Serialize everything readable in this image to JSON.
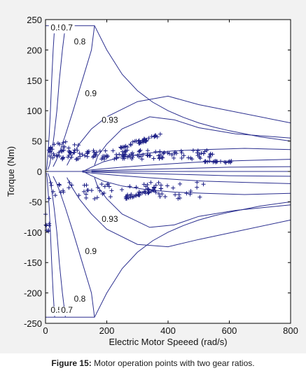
{
  "caption": {
    "label": "Figure 15:",
    "text": "Motor operation points with two gear ratios."
  },
  "colors": {
    "contour": "#2b2f8f",
    "points": "#1c1f86",
    "axis": "#000000",
    "panel": "#f2f2f2"
  },
  "chart_data": {
    "type": "scatter",
    "xlabel": "Electric Motor Speeed (rad/s)",
    "ylabel": "Torque (Nm)",
    "xlim": [
      0,
      800
    ],
    "ylim": [
      -250,
      250
    ],
    "xticks": [
      0,
      200,
      400,
      600,
      800
    ],
    "yticks": [
      250,
      200,
      150,
      100,
      50,
      0,
      -50,
      -100,
      -150,
      -200,
      -250
    ],
    "grid": false,
    "max_torque_limit": [
      [
        0,
        240
      ],
      [
        80,
        240
      ],
      [
        160,
        240
      ],
      [
        200,
        200
      ],
      [
        250,
        160
      ],
      [
        300,
        133
      ],
      [
        350,
        114
      ],
      [
        400,
        100
      ],
      [
        450,
        89
      ],
      [
        500,
        80
      ],
      [
        550,
        73
      ],
      [
        600,
        67
      ],
      [
        700,
        57
      ],
      [
        800,
        50
      ]
    ],
    "efficiency_contours": [
      {
        "level": "0.5",
        "label_points": [
          [
            36,
            232
          ],
          [
            36,
            -233
          ]
        ],
        "upper": [
          [
            30,
            240
          ],
          [
            25,
            200
          ],
          [
            20,
            150
          ],
          [
            16,
            100
          ],
          [
            12,
            60
          ],
          [
            8,
            30
          ],
          [
            5,
            10
          ],
          [
            3,
            2
          ]
        ],
        "lower": [
          [
            3,
            -2
          ],
          [
            5,
            -10
          ],
          [
            8,
            -30
          ],
          [
            12,
            -60
          ],
          [
            16,
            -100
          ],
          [
            20,
            -150
          ],
          [
            25,
            -200
          ],
          [
            30,
            -240
          ]
        ]
      },
      {
        "level": "0.7",
        "label_points": [
          [
            70,
            232
          ],
          [
            70,
            -233
          ]
        ],
        "upper": [
          [
            65,
            240
          ],
          [
            55,
            200
          ],
          [
            45,
            150
          ],
          [
            37,
            100
          ],
          [
            28,
            60
          ],
          [
            20,
            30
          ],
          [
            14,
            12
          ],
          [
            8,
            3
          ]
        ],
        "lower": [
          [
            8,
            -3
          ],
          [
            14,
            -12
          ],
          [
            20,
            -30
          ],
          [
            28,
            -60
          ],
          [
            37,
            -100
          ],
          [
            45,
            -150
          ],
          [
            55,
            -200
          ],
          [
            65,
            -240
          ]
        ]
      },
      {
        "level": "0.8",
        "label_points": [
          [
            112,
            209
          ],
          [
            112,
            -214
          ]
        ],
        "upper": [
          [
            160,
            240
          ],
          [
            150,
            200
          ],
          [
            120,
            150
          ],
          [
            90,
            100
          ],
          [
            65,
            60
          ],
          [
            48,
            35
          ],
          [
            35,
            18
          ],
          [
            25,
            8
          ]
        ],
        "lower": [
          [
            25,
            -8
          ],
          [
            35,
            -18
          ],
          [
            48,
            -35
          ],
          [
            65,
            -60
          ],
          [
            90,
            -100
          ],
          [
            120,
            -150
          ],
          [
            150,
            -200
          ],
          [
            160,
            -240
          ]
        ]
      },
      {
        "level": "0.9",
        "label_points": [
          [
            148,
            124
          ],
          [
            148,
            -136
          ]
        ],
        "upper": [
          [
            800,
            80
          ],
          [
            500,
            110
          ],
          [
            400,
            124
          ],
          [
            300,
            115
          ],
          [
            200,
            90
          ],
          [
            150,
            70
          ],
          [
            110,
            45
          ],
          [
            85,
            25
          ],
          [
            70,
            10
          ]
        ],
        "lower": [
          [
            70,
            -10
          ],
          [
            85,
            -25
          ],
          [
            110,
            -45
          ],
          [
            150,
            -70
          ],
          [
            200,
            -95
          ],
          [
            300,
            -120
          ],
          [
            400,
            -124
          ],
          [
            500,
            -112
          ],
          [
            800,
            -80
          ]
        ]
      },
      {
        "level": "0.93",
        "label_points": [
          [
            210,
            80
          ],
          [
            210,
            -83
          ]
        ],
        "upper": [
          [
            800,
            55
          ],
          [
            620,
            62
          ],
          [
            500,
            72
          ],
          [
            420,
            85
          ],
          [
            340,
            90
          ],
          [
            250,
            70
          ],
          [
            200,
            45
          ],
          [
            170,
            25
          ],
          [
            160,
            10
          ]
        ],
        "lower": [
          [
            160,
            -10
          ],
          [
            170,
            -25
          ],
          [
            200,
            -45
          ],
          [
            250,
            -70
          ],
          [
            340,
            -92
          ],
          [
            420,
            -88
          ],
          [
            500,
            -74
          ],
          [
            620,
            -64
          ],
          [
            800,
            -55
          ]
        ]
      },
      {
        "level": "",
        "label_points": [],
        "upper": [
          [
            800,
            36
          ],
          [
            650,
            38
          ],
          [
            520,
            36
          ],
          [
            420,
            34
          ],
          [
            330,
            30
          ],
          [
            250,
            24
          ],
          [
            190,
            16
          ],
          [
            150,
            7
          ],
          [
            130,
            2
          ]
        ],
        "lower": [
          [
            130,
            -2
          ],
          [
            150,
            -7
          ],
          [
            190,
            -16
          ],
          [
            250,
            -24
          ],
          [
            330,
            -30
          ],
          [
            420,
            -34
          ],
          [
            520,
            -36
          ],
          [
            650,
            -38
          ],
          [
            800,
            -36
          ]
        ]
      },
      {
        "level": "",
        "label_points": [],
        "upper": [
          [
            800,
            20
          ],
          [
            650,
            18
          ],
          [
            520,
            16
          ],
          [
            420,
            13
          ],
          [
            330,
            10
          ],
          [
            250,
            7
          ],
          [
            180,
            4
          ],
          [
            120,
            1
          ]
        ],
        "lower": [
          [
            120,
            -1
          ],
          [
            180,
            -4
          ],
          [
            250,
            -7
          ],
          [
            330,
            -10
          ],
          [
            420,
            -13
          ],
          [
            520,
            -16
          ],
          [
            650,
            -18
          ],
          [
            800,
            -20
          ]
        ]
      },
      {
        "level": "",
        "label_points": [],
        "upper": [
          [
            800,
            8
          ],
          [
            600,
            7
          ],
          [
            450,
            5
          ],
          [
            300,
            3
          ],
          [
            150,
            1
          ]
        ],
        "lower": [
          [
            150,
            -1
          ],
          [
            300,
            -3
          ],
          [
            450,
            -5
          ],
          [
            600,
            -7
          ],
          [
            800,
            -8
          ]
        ]
      }
    ],
    "operating_points": {
      "motoring_band_x": [
        10,
        560
      ],
      "motoring_band_y": [
        20,
        35
      ],
      "motoring_cluster_x": [
        245,
        380
      ],
      "motoring_cluster_y": [
        40,
        60
      ],
      "motoring_low_speed_x": [
        5,
        120
      ],
      "motoring_low_speed_y": [
        30,
        50
      ],
      "plateau_x": [
        520,
        610
      ],
      "plateau_y": [
        14,
        18
      ],
      "braking_band_x": [
        10,
        520
      ],
      "braking_band_y": [
        -18,
        -45
      ],
      "braking_cluster_x": [
        250,
        380
      ],
      "braking_cluster_y": [
        -25,
        -45
      ],
      "braking_low_speed_x": [
        0,
        15
      ],
      "braking_low_speed_y": [
        -55,
        -100
      ]
    },
    "contour_labels": [
      "0.5",
      "0.7",
      "0.8",
      "0.9",
      "0.93",
      "0.5",
      "0.7",
      "0.8",
      "0.9",
      "0.93"
    ]
  }
}
